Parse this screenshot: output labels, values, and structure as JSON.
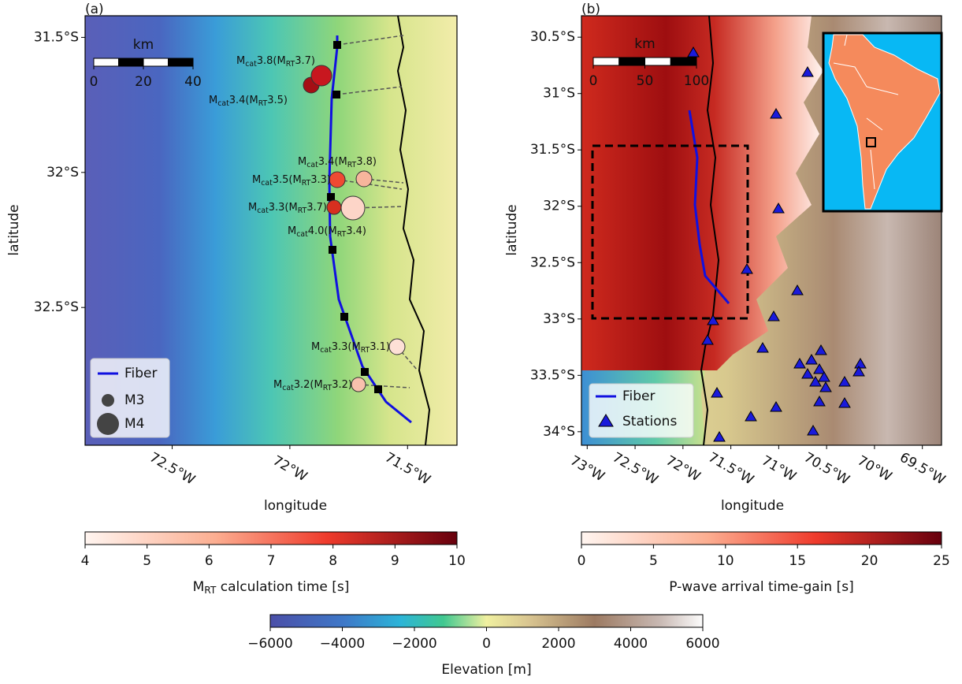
{
  "panels": [
    {
      "label": "(a)",
      "x_label": "longitude",
      "y_label": "latitude",
      "xlim": [
        -72.87,
        -71.29
      ],
      "ylim": [
        -33.01,
        -31.42
      ],
      "xticks": [
        {
          "value": -72.5,
          "label": "72.5°W"
        },
        {
          "value": -72,
          "label": "72°W"
        },
        {
          "value": -71.5,
          "label": "71.5°W"
        }
      ],
      "yticks": [
        {
          "value": -31.5,
          "label": "31.5°S"
        },
        {
          "value": -32,
          "label": "32°S"
        },
        {
          "value": -32.5,
          "label": "32.5°S"
        }
      ],
      "scale_bar": {
        "unit": "km",
        "ticks": [
          0,
          20,
          40
        ]
      },
      "legend": [
        "Fiber",
        "M3",
        "M4"
      ],
      "events": [
        {
          "label": [
            "M",
            "cat",
            "3.8(M",
            "RT",
            "3.7)"
          ]
        },
        {
          "label": [
            "M",
            "cat",
            "3.4(M",
            "RT",
            "3.5)"
          ]
        },
        {
          "label": [
            "M",
            "cat",
            "3.4(M",
            "RT",
            "3.8)"
          ]
        },
        {
          "label": [
            "M",
            "cat",
            "3.5(M",
            "RT",
            "3.3)"
          ]
        },
        {
          "label": [
            "M",
            "cat",
            "3.3(M",
            "RT",
            "3.7)"
          ]
        },
        {
          "label": [
            "M",
            "cat",
            "4.0(M",
            "RT",
            "3.4)"
          ]
        },
        {
          "label": [
            "M",
            "cat",
            "3.3(M",
            "RT",
            "3.1)"
          ]
        },
        {
          "label": [
            "M",
            "cat",
            "3.2(M",
            "RT",
            "3.2)"
          ]
        }
      ]
    },
    {
      "label": "(b)",
      "x_label": "longitude",
      "y_label": "latitude",
      "xlim": [
        -73.06,
        -69.3
      ],
      "ylim": [
        -34.12,
        -30.31
      ],
      "xticks": [
        {
          "value": -73,
          "label": "73°W"
        },
        {
          "value": -72.5,
          "label": "72.5°W"
        },
        {
          "value": -72,
          "label": "72°W"
        },
        {
          "value": -71.5,
          "label": "71.5°W"
        },
        {
          "value": -71,
          "label": "71°W"
        },
        {
          "value": -70.5,
          "label": "70.5°W"
        },
        {
          "value": -70,
          "label": "70°W"
        },
        {
          "value": -69.5,
          "label": "69.5°W"
        }
      ],
      "yticks": [
        {
          "value": -30.5,
          "label": "30.5°S"
        },
        {
          "value": -31,
          "label": "31°S"
        },
        {
          "value": -31.5,
          "label": "31.5°S"
        },
        {
          "value": -32,
          "label": "32°S"
        },
        {
          "value": -32.5,
          "label": "32.5°S"
        },
        {
          "value": -33,
          "label": "33°S"
        },
        {
          "value": -33.5,
          "label": "33.5°S"
        },
        {
          "value": -34,
          "label": "34°S"
        }
      ],
      "scale_bar": {
        "unit": "km",
        "ticks": [
          0,
          50,
          100
        ]
      },
      "legend": [
        "Fiber",
        "Stations"
      ]
    }
  ],
  "colorbars": [
    {
      "label": [
        "M",
        "RT",
        " calculation time [s]"
      ],
      "lim": [
        4,
        10
      ],
      "ticks": [
        4,
        5,
        6,
        7,
        8,
        9,
        10
      ]
    },
    {
      "label": [
        "P-wave arrival time-gain [s]"
      ],
      "lim": [
        0,
        25
      ],
      "ticks": [
        0,
        5,
        10,
        15,
        20,
        25
      ]
    },
    {
      "label": [
        "Elevation [m]"
      ],
      "lim": [
        -6000,
        6000
      ],
      "ticks": [
        {
          "value": -6000,
          "label": "−6000"
        },
        {
          "value": -4000,
          "label": "−4000"
        },
        {
          "value": -2000,
          "label": "−2000"
        },
        0,
        2000,
        4000,
        6000
      ]
    }
  ]
}
